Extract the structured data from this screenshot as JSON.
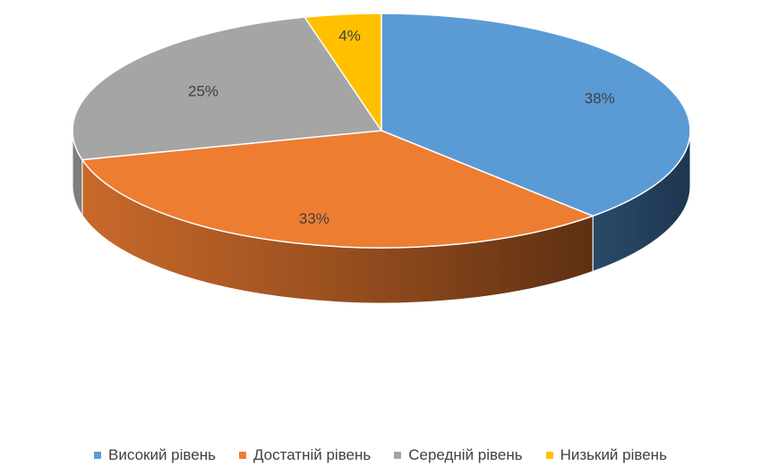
{
  "chart_data": {
    "type": "pie",
    "style": "3d",
    "title": "",
    "categories": [
      "Високий рівень",
      "Достатній рівень",
      "Середній рівень",
      "Низький рівень"
    ],
    "values": [
      38,
      33,
      25,
      4
    ],
    "labels": [
      "38%",
      "33%",
      "25%",
      "4%"
    ],
    "colors": [
      "#5B9BD5",
      "#ED7D31",
      "#A5A5A5",
      "#FFC000"
    ],
    "legend": {
      "position": "bottom",
      "items": [
        {
          "label": "Високий рівень",
          "color": "#5B9BD5"
        },
        {
          "label": "Достатній рівень",
          "color": "#ED7D31"
        },
        {
          "label": "Середній рівень",
          "color": "#A5A5A5"
        },
        {
          "label": "Низький рівень",
          "color": "#FFC000"
        }
      ]
    }
  }
}
